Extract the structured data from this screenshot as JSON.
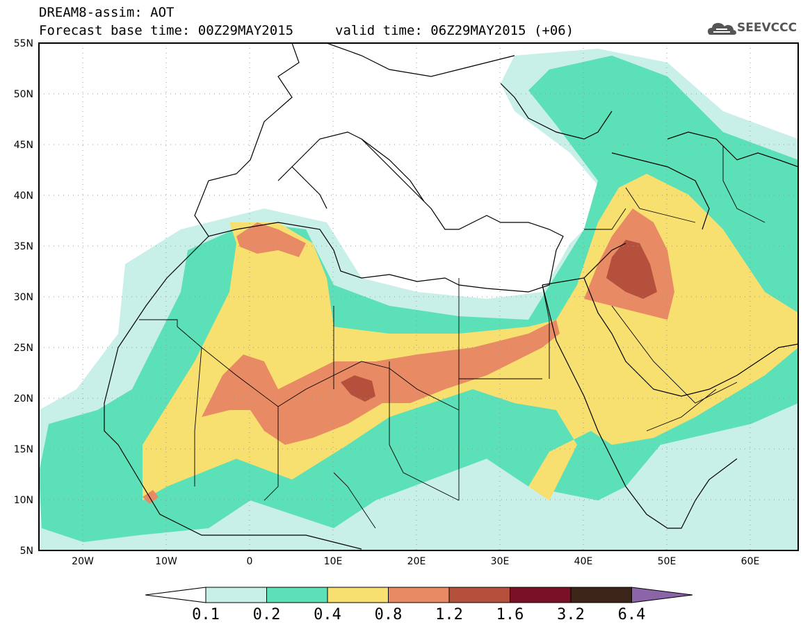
{
  "header": {
    "title": "DREAM8-assim: AOT",
    "base_time": "Forecast base time: 00Z29MAY2015",
    "valid_time": "valid time: 06Z29MAY2015 (+06)"
  },
  "logo": {
    "text": "SEEVCCC",
    "icon": "cloud-icon"
  },
  "axes": {
    "lat_labels": [
      "55N",
      "50N",
      "45N",
      "40N",
      "35N",
      "30N",
      "25N",
      "20N",
      "15N",
      "10N",
      "5N"
    ],
    "lon_labels": [
      "20W",
      "10W",
      "0",
      "10E",
      "20E",
      "30E",
      "40E",
      "50E",
      "60E"
    ]
  },
  "colorbar": {
    "levels": [
      "0.1",
      "0.2",
      "0.4",
      "0.8",
      "1.2",
      "1.6",
      "3.2",
      "6.4"
    ],
    "colors": [
      "#ffffff",
      "#c8f0e8",
      "#5ce0b8",
      "#f8e070",
      "#e88a64",
      "#b4503c",
      "#7a1028",
      "#3c2418",
      "#8c64a8"
    ]
  }
}
